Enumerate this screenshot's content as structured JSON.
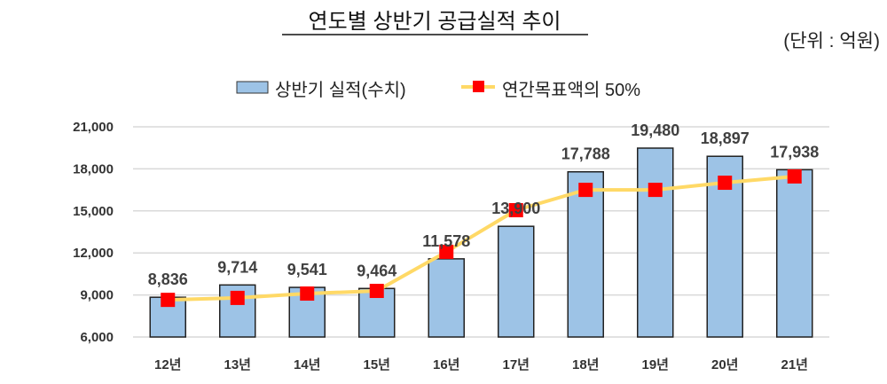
{
  "chart_data": {
    "type": "bar",
    "title": "연도별 상반기 공급실적 추이",
    "unit_note": "(단위 : 억원)",
    "categories": [
      "12년",
      "13년",
      "14년",
      "15년",
      "16년",
      "17년",
      "18년",
      "19년",
      "20년",
      "21년"
    ],
    "series": [
      {
        "name": "상반기 실적(수치)",
        "type": "bar",
        "color": "#9dc3e6",
        "values": [
          8836,
          9714,
          9541,
          9464,
          11578,
          13900,
          17788,
          19480,
          18897,
          17938
        ],
        "labels": [
          "8,836",
          "9,714",
          "9,541",
          "9,464",
          "11,578",
          "13,900",
          "17,788",
          "19,480",
          "18,897",
          "17,938"
        ]
      },
      {
        "name": "연간목표액의 50%",
        "type": "line",
        "line_color": "#ffd966",
        "marker_color": "#ff0000",
        "values": [
          8650,
          8790,
          9100,
          9290,
          12080,
          15050,
          16500,
          16500,
          17010,
          17460
        ]
      }
    ],
    "ylim": [
      6000,
      21000
    ],
    "yticks": [
      "6,000",
      "9,000",
      "12,000",
      "15,000",
      "18,000",
      "21,000"
    ],
    "ytick_values": [
      6000,
      9000,
      12000,
      15000,
      18000,
      21000
    ],
    "grid": true,
    "legend_position": "top"
  }
}
